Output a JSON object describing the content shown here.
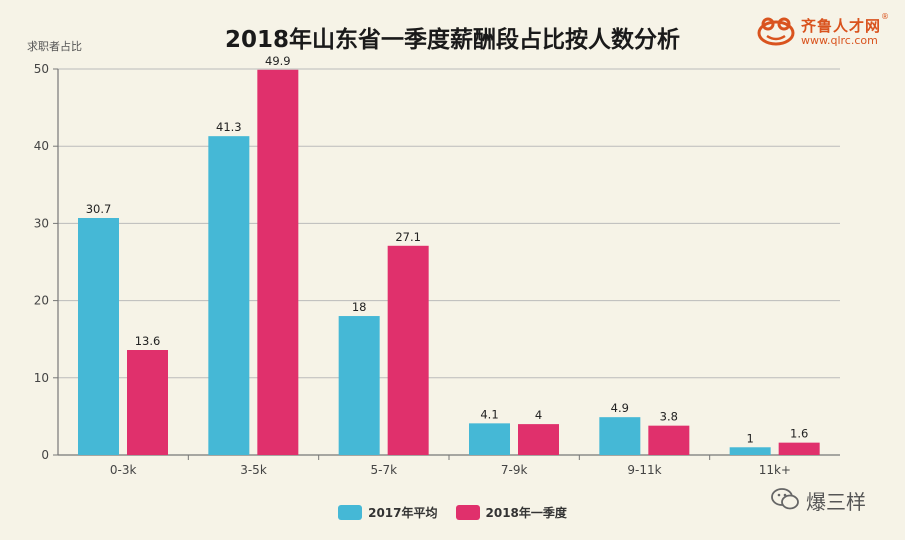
{
  "page": {
    "title": "2018年山东省一季度薪酬段占比按人数分析",
    "logo": {
      "name": "齐鲁人才网",
      "url": "www.qlrc.com",
      "mark": "®"
    },
    "watermark": {
      "text": "爆三样",
      "icon": "wechat-icon"
    }
  },
  "chart_data": {
    "type": "bar",
    "title": "2018年山东省一季度薪酬段占比按人数分析",
    "ylabel": "求职者占比",
    "xlabel": "",
    "ylim": [
      0,
      50
    ],
    "yticks": [
      0,
      10,
      20,
      30,
      40,
      50
    ],
    "grid": true,
    "legend_position": "bottom",
    "categories": [
      "0-3k",
      "3-5k",
      "5-7k",
      "7-9k",
      "9-11k",
      "11k+"
    ],
    "series": [
      {
        "name": "2017年平均",
        "color": "#45b8d6",
        "values": [
          30.7,
          41.3,
          18,
          4.1,
          4.9,
          1
        ]
      },
      {
        "name": "2018年一季度",
        "color": "#e0306c",
        "values": [
          13.6,
          49.9,
          27.1,
          4,
          3.8,
          1.6
        ]
      }
    ]
  }
}
